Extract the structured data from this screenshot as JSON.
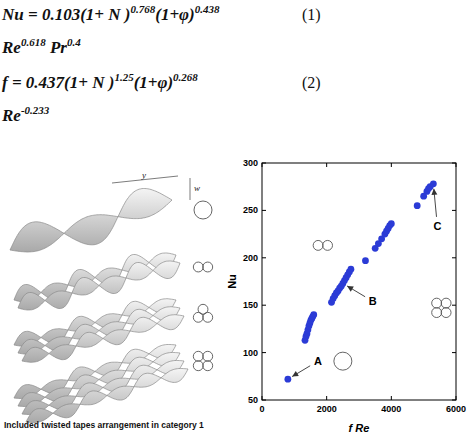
{
  "equations": [
    {
      "parts": [
        {
          "text": "Nu = 0.103(1+ N )"
        },
        {
          "sup": "0.768"
        },
        {
          "text": "(1+φ)"
        },
        {
          "sup": "0.438"
        }
      ],
      "continuation": [
        {
          "text": "Re"
        },
        {
          "sup": "0.618"
        },
        {
          "text": " Pr"
        },
        {
          "sup": "0.4"
        }
      ],
      "number": "(1)"
    },
    {
      "parts": [
        {
          "text": "f = 0.437(1+ N )"
        },
        {
          "sup": "1.25"
        },
        {
          "text": "(1+φ)"
        },
        {
          "sup": "0.268"
        }
      ],
      "continuation": [
        {
          "text": "Re"
        },
        {
          "sup": "-0.233"
        }
      ],
      "number": "(2)"
    }
  ],
  "diagram": {
    "caption": "Included twisted tapes arrangement in category 1",
    "dimension_labels": [
      "y",
      "w"
    ],
    "rows": [
      1,
      2,
      3,
      4
    ]
  },
  "chart_data": {
    "type": "scatter",
    "x_label": "f Re",
    "y_label": "Nu",
    "color": "#2b3bd6",
    "marker": "circle",
    "xlim": [
      0,
      6000
    ],
    "xticks": [
      0,
      2000,
      4000,
      6000
    ],
    "ylim": [
      50,
      300
    ],
    "yticks": [
      50,
      100,
      150,
      200,
      250,
      300
    ],
    "x": [
      800,
      1330,
      1360,
      1390,
      1420,
      1450,
      1480,
      1510,
      1540,
      1570,
      1600,
      2150,
      2200,
      2250,
      2300,
      2350,
      2400,
      2450,
      2500,
      2550,
      2600,
      2650,
      2700,
      2750,
      3200,
      3500,
      3600,
      3700,
      3800,
      3850,
      3900,
      3950,
      4000,
      4800,
      5000,
      5100,
      5150,
      5200,
      5300
    ],
    "values": [
      72,
      113,
      117,
      120,
      124,
      128,
      131,
      134,
      136,
      138,
      140,
      153,
      157,
      160,
      163,
      165,
      168,
      170,
      173,
      176,
      179,
      182,
      185,
      188,
      197,
      210,
      215,
      220,
      225,
      228,
      231,
      234,
      236,
      255,
      265,
      270,
      273,
      275,
      278
    ],
    "annotations": [
      {
        "text": "A",
        "target": [
          800,
          72
        ],
        "tubes": 1
      },
      {
        "text": "B",
        "target": [
          2500,
          173
        ],
        "tubes": 2
      },
      {
        "text": "C",
        "target": [
          5300,
          278
        ],
        "tubes": 4
      }
    ]
  }
}
